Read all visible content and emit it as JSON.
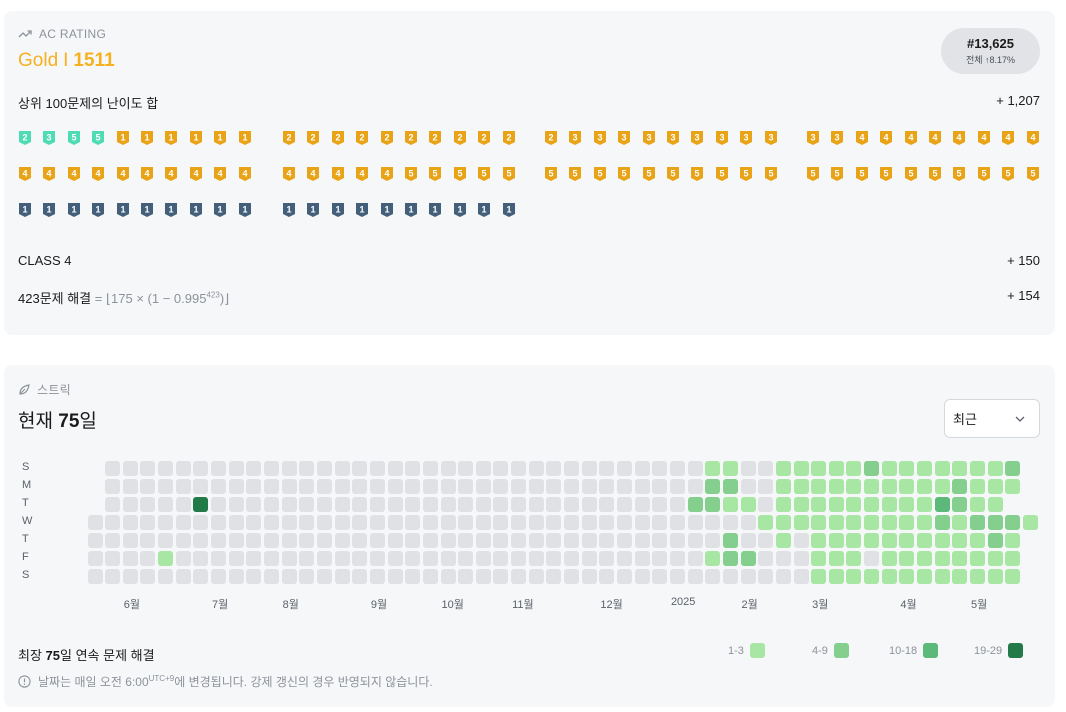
{
  "rating": {
    "label": "AC RATING",
    "tier": "Gold",
    "separator": "I",
    "value": "1511",
    "rank": "#13,625",
    "rank_scope": "전체",
    "rank_percent": "8.17%",
    "top100_label": "상위 100문제의 난이도 합",
    "top100_value": "+ 1,207",
    "class_label": "CLASS 4",
    "class_value": "+ 150",
    "solved_label": "423문제 해결",
    "solved_formula_pre": "= ⌊175 × (1 − 0.995",
    "solved_formula_exp": "423",
    "solved_formula_post": ")⌋",
    "solved_value": "+ 154",
    "badge_groups": [
      [
        {
          "tier": "platinum",
          "level": "2"
        },
        {
          "tier": "platinum",
          "level": "3"
        },
        {
          "tier": "platinum",
          "level": "5"
        },
        {
          "tier": "platinum",
          "level": "5"
        },
        {
          "tier": "gold",
          "level": "1"
        },
        {
          "tier": "gold",
          "level": "1"
        },
        {
          "tier": "gold",
          "level": "1"
        },
        {
          "tier": "gold",
          "level": "1"
        },
        {
          "tier": "gold",
          "level": "1"
        },
        {
          "tier": "gold",
          "level": "1"
        },
        {
          "tier": "gold",
          "level": "4"
        },
        {
          "tier": "gold",
          "level": "4"
        },
        {
          "tier": "gold",
          "level": "4"
        },
        {
          "tier": "gold",
          "level": "4"
        },
        {
          "tier": "gold",
          "level": "4"
        },
        {
          "tier": "gold",
          "level": "4"
        },
        {
          "tier": "gold",
          "level": "4"
        },
        {
          "tier": "gold",
          "level": "4"
        },
        {
          "tier": "gold",
          "level": "4"
        },
        {
          "tier": "gold",
          "level": "4"
        },
        {
          "tier": "silver",
          "level": "1"
        },
        {
          "tier": "silver",
          "level": "1"
        },
        {
          "tier": "silver",
          "level": "1"
        },
        {
          "tier": "silver",
          "level": "1"
        },
        {
          "tier": "silver",
          "level": "1"
        },
        {
          "tier": "silver",
          "level": "1"
        },
        {
          "tier": "silver",
          "level": "1"
        },
        {
          "tier": "silver",
          "level": "1"
        },
        {
          "tier": "silver",
          "level": "1"
        },
        {
          "tier": "silver",
          "level": "1"
        }
      ],
      [
        {
          "tier": "gold",
          "level": "2"
        },
        {
          "tier": "gold",
          "level": "2"
        },
        {
          "tier": "gold",
          "level": "2"
        },
        {
          "tier": "gold",
          "level": "2"
        },
        {
          "tier": "gold",
          "level": "2"
        },
        {
          "tier": "gold",
          "level": "2"
        },
        {
          "tier": "gold",
          "level": "2"
        },
        {
          "tier": "gold",
          "level": "2"
        },
        {
          "tier": "gold",
          "level": "2"
        },
        {
          "tier": "gold",
          "level": "2"
        },
        {
          "tier": "gold",
          "level": "4"
        },
        {
          "tier": "gold",
          "level": "4"
        },
        {
          "tier": "gold",
          "level": "4"
        },
        {
          "tier": "gold",
          "level": "4"
        },
        {
          "tier": "gold",
          "level": "4"
        },
        {
          "tier": "gold",
          "level": "5"
        },
        {
          "tier": "gold",
          "level": "5"
        },
        {
          "tier": "gold",
          "level": "5"
        },
        {
          "tier": "gold",
          "level": "5"
        },
        {
          "tier": "gold",
          "level": "5"
        },
        {
          "tier": "silver",
          "level": "1"
        },
        {
          "tier": "silver",
          "level": "1"
        },
        {
          "tier": "silver",
          "level": "1"
        },
        {
          "tier": "silver",
          "level": "1"
        },
        {
          "tier": "silver",
          "level": "1"
        },
        {
          "tier": "silver",
          "level": "1"
        },
        {
          "tier": "silver",
          "level": "1"
        },
        {
          "tier": "silver",
          "level": "1"
        },
        {
          "tier": "silver",
          "level": "1"
        },
        {
          "tier": "silver",
          "level": "1"
        }
      ],
      [
        {
          "tier": "gold",
          "level": "2"
        },
        {
          "tier": "gold",
          "level": "3"
        },
        {
          "tier": "gold",
          "level": "3"
        },
        {
          "tier": "gold",
          "level": "3"
        },
        {
          "tier": "gold",
          "level": "3"
        },
        {
          "tier": "gold",
          "level": "3"
        },
        {
          "tier": "gold",
          "level": "3"
        },
        {
          "tier": "gold",
          "level": "3"
        },
        {
          "tier": "gold",
          "level": "3"
        },
        {
          "tier": "gold",
          "level": "3"
        },
        {
          "tier": "gold",
          "level": "5"
        },
        {
          "tier": "gold",
          "level": "5"
        },
        {
          "tier": "gold",
          "level": "5"
        },
        {
          "tier": "gold",
          "level": "5"
        },
        {
          "tier": "gold",
          "level": "5"
        },
        {
          "tier": "gold",
          "level": "5"
        },
        {
          "tier": "gold",
          "level": "5"
        },
        {
          "tier": "gold",
          "level": "5"
        },
        {
          "tier": "gold",
          "level": "5"
        },
        {
          "tier": "gold",
          "level": "5"
        }
      ],
      [
        {
          "tier": "gold",
          "level": "3"
        },
        {
          "tier": "gold",
          "level": "3"
        },
        {
          "tier": "gold",
          "level": "4"
        },
        {
          "tier": "gold",
          "level": "4"
        },
        {
          "tier": "gold",
          "level": "4"
        },
        {
          "tier": "gold",
          "level": "4"
        },
        {
          "tier": "gold",
          "level": "4"
        },
        {
          "tier": "gold",
          "level": "4"
        },
        {
          "tier": "gold",
          "level": "4"
        },
        {
          "tier": "gold",
          "level": "4"
        },
        {
          "tier": "gold",
          "level": "5"
        },
        {
          "tier": "gold",
          "level": "5"
        },
        {
          "tier": "gold",
          "level": "5"
        },
        {
          "tier": "gold",
          "level": "5"
        },
        {
          "tier": "gold",
          "level": "5"
        },
        {
          "tier": "gold",
          "level": "5"
        },
        {
          "tier": "gold",
          "level": "5"
        },
        {
          "tier": "gold",
          "level": "5"
        },
        {
          "tier": "gold",
          "level": "5"
        },
        {
          "tier": "gold",
          "level": "5"
        }
      ]
    ]
  },
  "streak": {
    "label": "스트릭",
    "title_prefix": "현재 ",
    "title_value": "75",
    "title_suffix": "일",
    "dropdown_value": "최근",
    "day_labels": [
      "S",
      "M",
      "T",
      "W",
      "T",
      "F",
      "S"
    ],
    "months": [
      {
        "label": "6월",
        "week": 2
      },
      {
        "label": "7월",
        "week": 7
      },
      {
        "label": "8월",
        "week": 11
      },
      {
        "label": "9월",
        "week": 16
      },
      {
        "label": "10월",
        "week": 20
      },
      {
        "label": "11월",
        "week": 24
      },
      {
        "label": "12월",
        "week": 29
      },
      {
        "label": "2025",
        "week": 33
      },
      {
        "label": "2월",
        "week": 37
      },
      {
        "label": "3월",
        "week": 41
      },
      {
        "label": "4월",
        "week": 46
      },
      {
        "label": "5월",
        "week": 50
      }
    ],
    "grid": [
      "000000000000000000000000000000000000000000000000000",
      "0000000000000000000000000000000000000222220000000000",
      "00000000000000000000000000000000000000",
      "00000000000000000000000000000000000000",
      "00000000000000000000000000000000000000",
      "00000000000000000000000000000000000000",
      "00000000000000000000000000000000000000"
    ],
    "cells": [
      "-0000000000000000000000000000000000110011111211111112",
      "-0000000000000000000000000000000000220011111111112111",
      "-000004000000000000000000000000000221101111111113211",
      "000000000000000000000000000000000000001111111111212221",
      "00000000000000000000000000000000000020010111111111121",
      "00001000000000000000000000000000000122000111011111111",
      "00000000000000000000000000000000000000000111111111111"
    ],
    "longest_prefix": "최장 ",
    "longest_value": "75",
    "longest_suffix": "일 연속 문제 해결",
    "legend": [
      {
        "range": "1-3",
        "color": "#a7e6a3"
      },
      {
        "range": "4-9",
        "color": "#84cf8e"
      },
      {
        "range": "10-18",
        "color": "#5cb97a"
      },
      {
        "range": "19-29",
        "color": "#217a48"
      }
    ],
    "notice_pre": "날짜는 매일 오전 6:00",
    "notice_sup": "UTC+9",
    "notice_post": "에 변경됩니다. 강제 갱신의 경우 반영되지 않습니다.",
    "colors": {
      "empty": "#dfe1e4",
      "lvl1": "#a7e6a3",
      "lvl2": "#84cf8e",
      "lvl3": "#5cb97a",
      "lvl4": "#217a48",
      "today": "#6fc0ec"
    }
  },
  "tier_colors": {
    "platinum": "#4fdcb5",
    "gold": "#e8a317",
    "silver": "#435f7a"
  }
}
